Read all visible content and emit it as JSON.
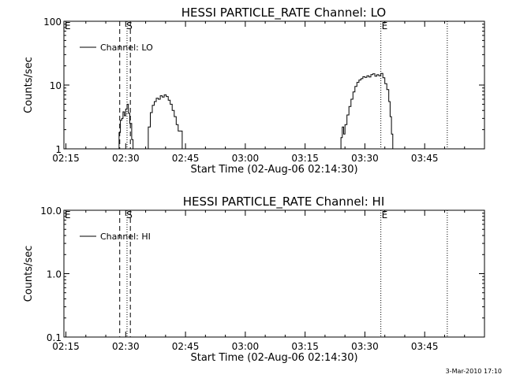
{
  "window": {
    "footer_stamp": "3-Mar-2010 17:10"
  },
  "chart_data": [
    {
      "type": "line",
      "title": "HESSI PARTICLE_RATE Channel: LO",
      "xlabel": "Start Time (02-Aug-06 02:14:30)",
      "ylabel": "Counts/sec",
      "yscale": "log",
      "xlim": [
        "02:14:30",
        "04:00:00"
      ],
      "ylim": [
        1,
        100
      ],
      "grid": false,
      "legend": {
        "placement": "top-left",
        "entries": [
          "Channel: LO"
        ]
      },
      "x_ticks": [
        "02:15",
        "02:30",
        "02:45",
        "03:00",
        "03:15",
        "03:30",
        "03:45"
      ],
      "y_ticks": [
        "1",
        "10",
        "100"
      ],
      "y_tick_values": [
        1,
        10,
        100
      ],
      "markers": [
        {
          "label": "E",
          "time": "02:14:30",
          "style": "none"
        },
        {
          "label": "S",
          "time": "02:30:00",
          "style": "none"
        },
        {
          "label": "",
          "time": "02:28:30",
          "style": "dashed"
        },
        {
          "label": "",
          "time": "02:31:10",
          "style": "dashed"
        },
        {
          "label": "",
          "time": "02:30:20",
          "style": "dotted"
        },
        {
          "label": "E",
          "time": "03:34:00",
          "style": "dotted"
        },
        {
          "label": "",
          "time": "03:50:40",
          "style": "dotted"
        }
      ],
      "series": [
        {
          "name": "Channel: LO",
          "segments": [
            [
              [
                "02:27:50",
                1
              ],
              [
                "02:28:20",
                1.8
              ],
              [
                "02:28:40",
                2.8
              ],
              [
                "02:29:00",
                3.0
              ],
              [
                "02:29:20",
                3.8
              ],
              [
                "02:29:40",
                3.3
              ],
              [
                "02:30:00",
                4.2
              ],
              [
                "02:30:20",
                5.0
              ],
              [
                "02:30:40",
                3.6
              ],
              [
                "02:31:00",
                2.5
              ],
              [
                "02:31:30",
                1.4
              ],
              [
                "02:31:50",
                1
              ]
            ],
            [
              [
                "02:35:10",
                1
              ],
              [
                "02:35:40",
                2.2
              ],
              [
                "02:36:10",
                3.7
              ],
              [
                "02:36:40",
                4.8
              ],
              [
                "02:37:10",
                5.5
              ],
              [
                "02:37:40",
                6.2
              ],
              [
                "02:38:10",
                6.0
              ],
              [
                "02:38:40",
                6.8
              ],
              [
                "02:39:10",
                6.5
              ],
              [
                "02:39:40",
                7.0
              ],
              [
                "02:40:10",
                6.6
              ],
              [
                "02:40:40",
                5.8
              ],
              [
                "02:41:10",
                5.0
              ],
              [
                "02:41:40",
                4.0
              ],
              [
                "02:42:10",
                3.2
              ],
              [
                "02:42:40",
                2.4
              ],
              [
                "02:43:10",
                1.9
              ],
              [
                "02:43:40",
                1.9
              ],
              [
                "02:44:10",
                1
              ]
            ],
            [
              [
                "03:23:40",
                1
              ],
              [
                "03:24:00",
                1.5
              ],
              [
                "03:24:20",
                2.2
              ],
              [
                "03:24:40",
                1.7
              ],
              [
                "03:25:00",
                2.4
              ],
              [
                "03:25:30",
                3.4
              ],
              [
                "03:26:00",
                4.6
              ],
              [
                "03:26:30",
                6.0
              ],
              [
                "03:27:00",
                7.8
              ],
              [
                "03:27:30",
                9.5
              ],
              [
                "03:28:00",
                11
              ],
              [
                "03:28:30",
                12
              ],
              [
                "03:29:00",
                12.6
              ],
              [
                "03:29:30",
                13.5
              ],
              [
                "03:30:00",
                13.2
              ],
              [
                "03:30:30",
                14
              ],
              [
                "03:31:00",
                13.4
              ],
              [
                "03:31:30",
                14.6
              ],
              [
                "03:32:00",
                15
              ],
              [
                "03:32:30",
                13.8
              ],
              [
                "03:33:00",
                14.5
              ],
              [
                "03:33:30",
                14
              ],
              [
                "03:34:00",
                15.2
              ],
              [
                "03:34:30",
                13
              ],
              [
                "03:35:00",
                10.5
              ],
              [
                "03:35:30",
                8.5
              ],
              [
                "03:36:00",
                5.5
              ],
              [
                "03:36:20",
                3.2
              ],
              [
                "03:36:40",
                1.7
              ],
              [
                "03:37:00",
                1
              ]
            ]
          ]
        }
      ]
    },
    {
      "type": "line",
      "title": "HESSI PARTICLE_RATE Channel: HI",
      "xlabel": "Start Time (02-Aug-06 02:14:30)",
      "ylabel": "Counts/sec",
      "yscale": "log",
      "xlim": [
        "02:14:30",
        "04:00:00"
      ],
      "ylim": [
        0.1,
        10
      ],
      "grid": false,
      "legend": {
        "placement": "top-left",
        "entries": [
          "Channel: HI"
        ]
      },
      "x_ticks": [
        "02:15",
        "02:30",
        "02:45",
        "03:00",
        "03:15",
        "03:30",
        "03:45"
      ],
      "y_ticks": [
        "0.1",
        "1.0",
        "10.0"
      ],
      "y_tick_values": [
        0.1,
        1,
        10
      ],
      "markers": [
        {
          "label": "E",
          "time": "02:14:30",
          "style": "none"
        },
        {
          "label": "S",
          "time": "02:30:00",
          "style": "none"
        },
        {
          "label": "",
          "time": "02:28:30",
          "style": "dashed"
        },
        {
          "label": "",
          "time": "02:31:10",
          "style": "dashed"
        },
        {
          "label": "",
          "time": "02:30:20",
          "style": "dotted"
        },
        {
          "label": "E",
          "time": "03:34:00",
          "style": "dotted"
        },
        {
          "label": "",
          "time": "03:50:40",
          "style": "dotted"
        }
      ],
      "series": [
        {
          "name": "Channel: HI",
          "segments": []
        }
      ]
    }
  ]
}
